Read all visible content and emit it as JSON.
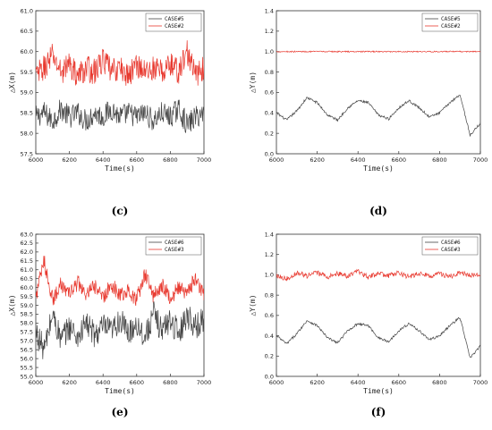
{
  "chart_data": [
    {
      "type": "line",
      "caption": "(c)",
      "xlabel": "Time(s)",
      "ylabel": "△X(m)",
      "xlim": [
        6000,
        7000
      ],
      "ylim": [
        57.5,
        61.0
      ],
      "xticks": [
        6000,
        6200,
        6400,
        6600,
        6800,
        7000
      ],
      "yticks": [
        "57.5",
        "58.0",
        "58.5",
        "59.0",
        "59.5",
        "60.0",
        "60.5",
        "61.0"
      ],
      "legend_position": "top-right",
      "series": [
        {
          "name": "CASE#5",
          "color": "#444444",
          "x": [
            6000,
            6050,
            6100,
            6150,
            6200,
            6250,
            6300,
            6350,
            6400,
            6450,
            6500,
            6550,
            6600,
            6650,
            6700,
            6750,
            6800,
            6850,
            6900,
            6950,
            7000
          ],
          "y": [
            58.4,
            58.5,
            58.3,
            58.6,
            58.4,
            58.5,
            58.3,
            58.5,
            58.4,
            58.6,
            58.4,
            58.5,
            58.4,
            58.5,
            58.3,
            58.5,
            58.4,
            58.6,
            58.2,
            58.4,
            58.5
          ]
        },
        {
          "name": "CASE#2",
          "color": "#e8382e",
          "x": [
            6000,
            6050,
            6100,
            6150,
            6200,
            6250,
            6300,
            6350,
            6400,
            6450,
            6500,
            6550,
            6600,
            6650,
            6700,
            6750,
            6800,
            6850,
            6900,
            6950,
            7000
          ],
          "y": [
            59.4,
            59.6,
            59.9,
            59.5,
            59.7,
            59.4,
            59.6,
            59.5,
            59.8,
            59.5,
            59.6,
            59.4,
            59.7,
            59.5,
            59.6,
            59.5,
            59.7,
            59.5,
            60.0,
            59.4,
            59.6
          ]
        }
      ]
    },
    {
      "type": "line",
      "caption": "(d)",
      "xlabel": "Time(s)",
      "ylabel": "△Y(m)",
      "xlim": [
        6000,
        7000
      ],
      "ylim": [
        0.0,
        1.4
      ],
      "xticks": [
        6000,
        6200,
        6400,
        6600,
        6800,
        7000
      ],
      "yticks": [
        "0.0",
        "0.2",
        "0.4",
        "0.6",
        "0.8",
        "1.0",
        "1.2",
        "1.4"
      ],
      "legend_position": "top-right",
      "series": [
        {
          "name": "CASE#5",
          "color": "#444444",
          "x": [
            6000,
            6050,
            6100,
            6150,
            6200,
            6250,
            6300,
            6350,
            6400,
            6450,
            6500,
            6550,
            6600,
            6650,
            6700,
            6750,
            6800,
            6850,
            6900,
            6950,
            7000
          ],
          "y": [
            0.4,
            0.33,
            0.42,
            0.55,
            0.5,
            0.38,
            0.33,
            0.45,
            0.52,
            0.5,
            0.38,
            0.34,
            0.45,
            0.52,
            0.45,
            0.36,
            0.4,
            0.5,
            0.58,
            0.18,
            0.3
          ]
        },
        {
          "name": "CASE#2",
          "color": "#e8382e",
          "x": [
            6000,
            6100,
            6200,
            6300,
            6400,
            6500,
            6600,
            6700,
            6800,
            6900,
            7000
          ],
          "y": [
            1.0,
            1.0,
            1.0,
            1.0,
            1.0,
            1.0,
            1.0,
            1.0,
            1.0,
            1.0,
            1.0
          ]
        }
      ]
    },
    {
      "type": "line",
      "caption": "(e)",
      "xlabel": "Time(s)",
      "ylabel": "△X(m)",
      "xlim": [
        6000,
        7000
      ],
      "ylim": [
        55.0,
        63.0
      ],
      "xticks": [
        6000,
        6200,
        6400,
        6600,
        6800,
        7000
      ],
      "yticks": [
        "55.0",
        "55.5",
        "56.0",
        "56.5",
        "57.0",
        "57.5",
        "58.0",
        "58.5",
        "59.0",
        "59.5",
        "60.0",
        "60.5",
        "61.0",
        "61.5",
        "62.0",
        "62.5",
        "63.0"
      ],
      "legend_position": "top-right",
      "series": [
        {
          "name": "CASE#6",
          "color": "#444444",
          "x": [
            6000,
            6050,
            6100,
            6150,
            6200,
            6250,
            6300,
            6350,
            6400,
            6450,
            6500,
            6550,
            6600,
            6650,
            6700,
            6750,
            6800,
            6850,
            6900,
            6950,
            7000
          ],
          "y": [
            57.5,
            56.5,
            58.5,
            57.0,
            57.8,
            57.2,
            58.0,
            57.3,
            57.8,
            57.5,
            58.2,
            57.4,
            58.0,
            57.2,
            58.5,
            57.6,
            58.2,
            57.4,
            58.5,
            57.8,
            58.2
          ]
        },
        {
          "name": "CASE#3",
          "color": "#e8382e",
          "x": [
            6000,
            6050,
            6100,
            6150,
            6200,
            6250,
            6300,
            6350,
            6400,
            6450,
            6500,
            6550,
            6600,
            6650,
            6700,
            6750,
            6800,
            6850,
            6900,
            6950,
            7000
          ],
          "y": [
            59.5,
            61.5,
            59.3,
            60.2,
            59.6,
            60.3,
            59.5,
            60.1,
            59.4,
            60.2,
            59.6,
            59.8,
            59.3,
            60.8,
            59.5,
            60.2,
            59.4,
            60.0,
            59.6,
            60.6,
            59.5
          ]
        }
      ]
    },
    {
      "type": "line",
      "caption": "(f)",
      "xlabel": "Time(s)",
      "ylabel": "△Y(m)",
      "xlim": [
        6000,
        7000
      ],
      "ylim": [
        0.0,
        1.4
      ],
      "xticks": [
        6000,
        6200,
        6400,
        6600,
        6800,
        7000
      ],
      "yticks": [
        "0.0",
        "0.2",
        "0.4",
        "0.6",
        "0.8",
        "1.0",
        "1.2",
        "1.4"
      ],
      "legend_position": "top-right",
      "series": [
        {
          "name": "CASE#6",
          "color": "#444444",
          "x": [
            6000,
            6050,
            6100,
            6150,
            6200,
            6250,
            6300,
            6350,
            6400,
            6450,
            6500,
            6550,
            6600,
            6650,
            6700,
            6750,
            6800,
            6850,
            6900,
            6950,
            7000
          ],
          "y": [
            0.4,
            0.32,
            0.42,
            0.55,
            0.5,
            0.38,
            0.33,
            0.45,
            0.52,
            0.5,
            0.38,
            0.34,
            0.45,
            0.52,
            0.45,
            0.36,
            0.4,
            0.5,
            0.58,
            0.18,
            0.3
          ]
        },
        {
          "name": "CASE#3",
          "color": "#e8382e",
          "x": [
            6000,
            6050,
            6100,
            6150,
            6200,
            6250,
            6300,
            6350,
            6400,
            6450,
            6500,
            6550,
            6600,
            6650,
            6700,
            6750,
            6800,
            6850,
            6900,
            6950,
            7000
          ],
          "y": [
            1.0,
            0.96,
            1.02,
            0.99,
            1.02,
            0.98,
            1.01,
            0.99,
            1.03,
            0.98,
            1.01,
            0.99,
            1.02,
            0.98,
            1.01,
            0.99,
            1.01,
            0.98,
            1.02,
            0.99,
            1.0
          ]
        }
      ]
    }
  ]
}
